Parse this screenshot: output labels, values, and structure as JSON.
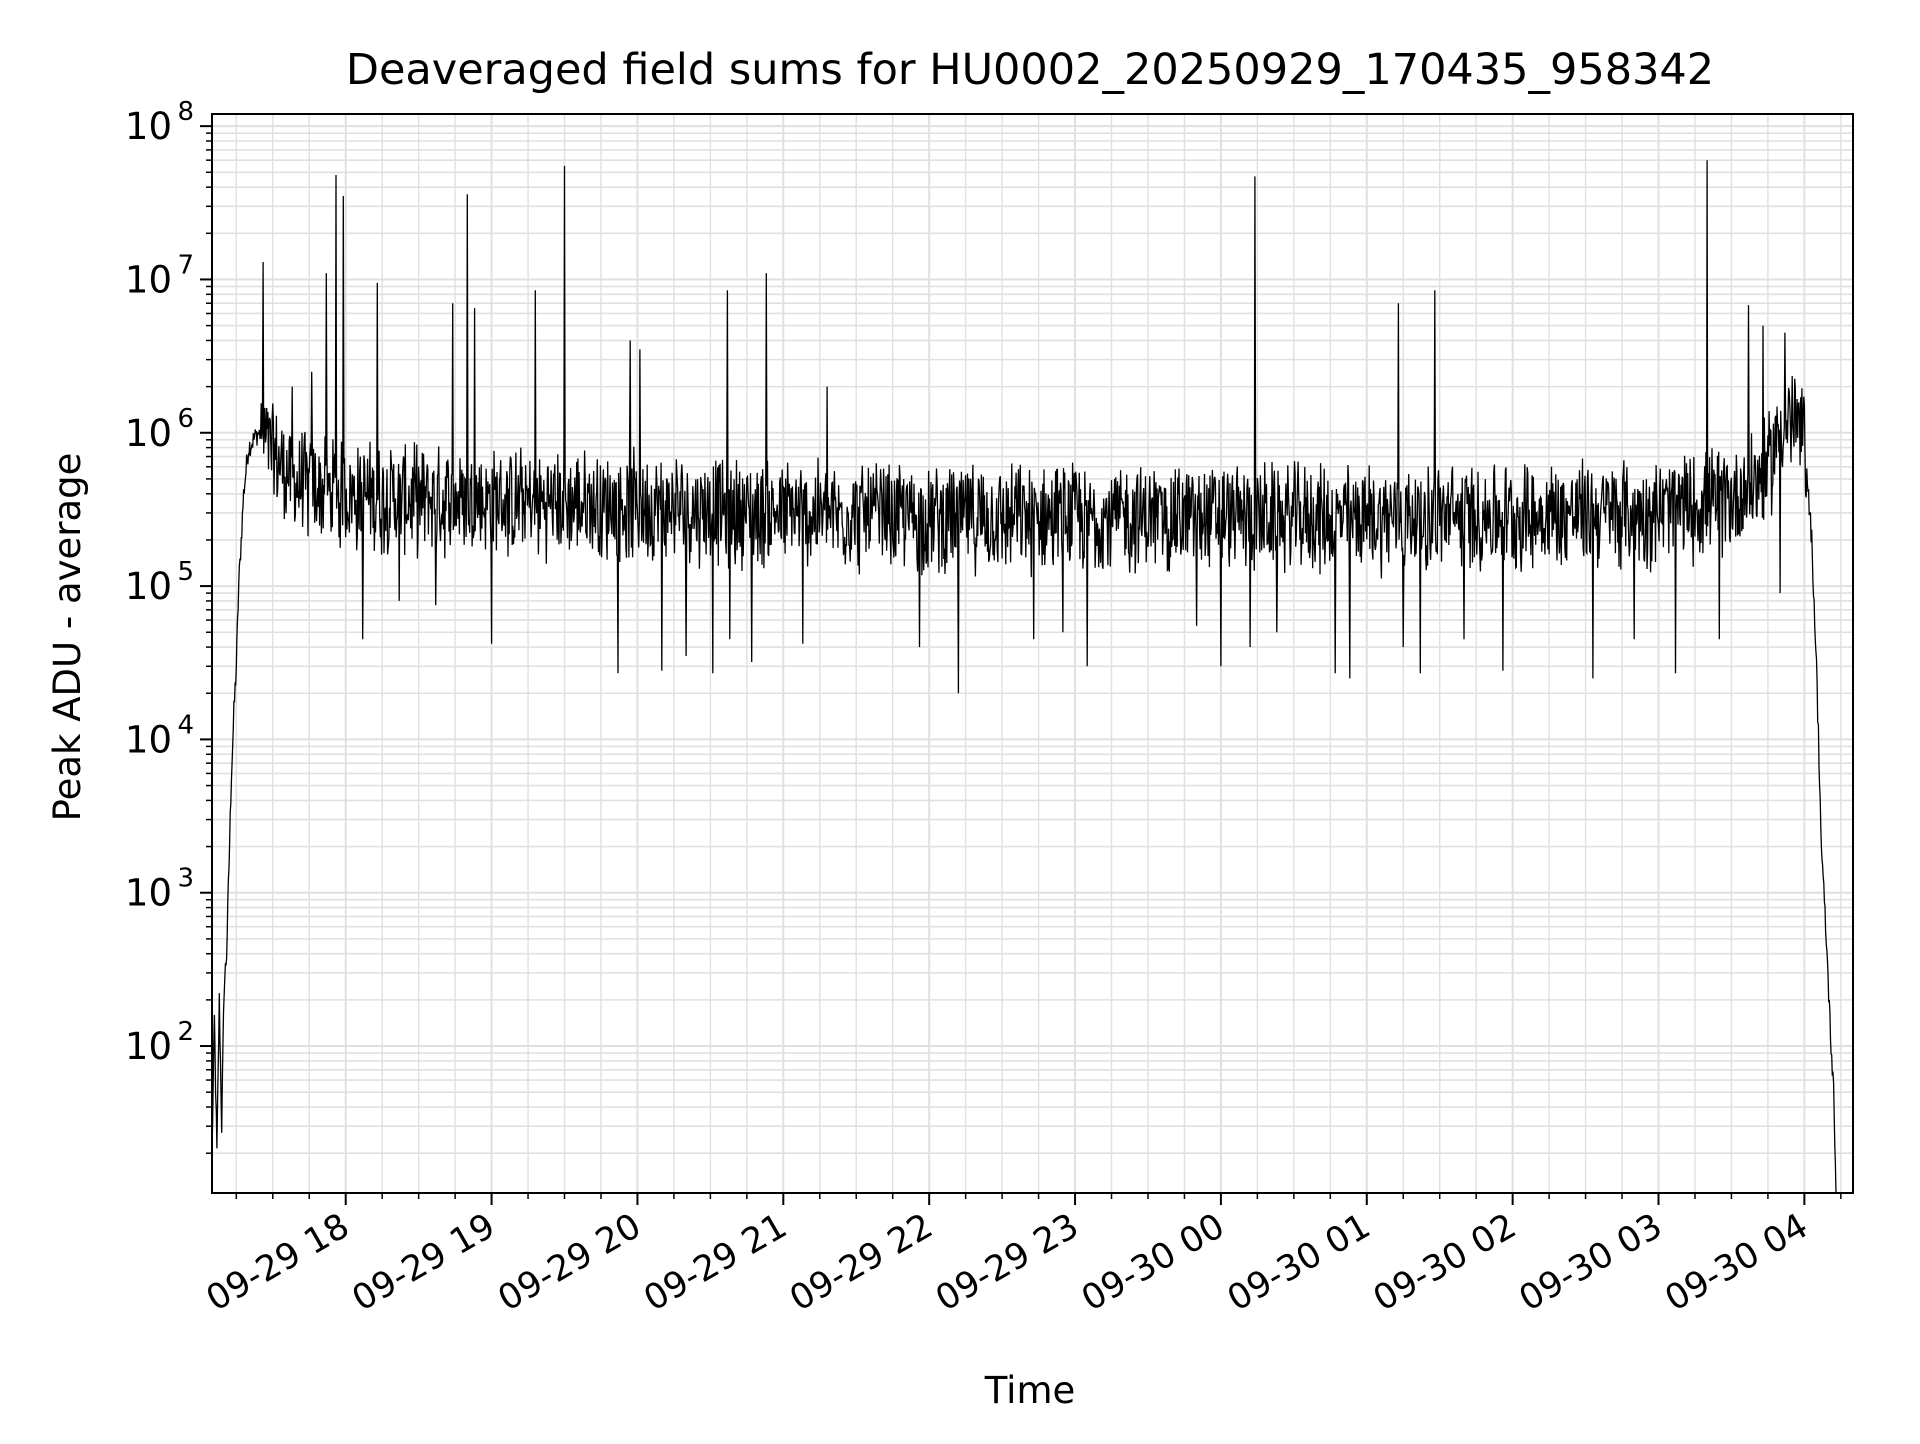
{
  "chart_data": {
    "type": "line",
    "title": "Deaveraged field sums for HU0002_20250929_170435_958342",
    "xlabel": "Time",
    "ylabel": "Peak ADU - average",
    "yscale": "log",
    "ylim": [
      11,
      120000000
    ],
    "xlim": [
      "2025-09-29 17:05",
      "2025-09-30 04:20"
    ],
    "grid": true,
    "line_color": "#000000",
    "grid_color": "#e0e0e0",
    "x_ticks": [
      {
        "t": "2025-09-29 18:00",
        "label": "09-29 18"
      },
      {
        "t": "2025-09-29 19:00",
        "label": "09-29 19"
      },
      {
        "t": "2025-09-29 20:00",
        "label": "09-29 20"
      },
      {
        "t": "2025-09-29 21:00",
        "label": "09-29 21"
      },
      {
        "t": "2025-09-29 22:00",
        "label": "09-29 22"
      },
      {
        "t": "2025-09-29 23:00",
        "label": "09-29 23"
      },
      {
        "t": "2025-09-30 00:00",
        "label": "09-30 00"
      },
      {
        "t": "2025-09-30 01:00",
        "label": "09-30 01"
      },
      {
        "t": "2025-09-30 02:00",
        "label": "09-30 02"
      },
      {
        "t": "2025-09-30 03:00",
        "label": "09-30 03"
      },
      {
        "t": "2025-09-30 04:00",
        "label": "09-30 04"
      }
    ],
    "y_ticks": [
      {
        "v": 100,
        "base": "10",
        "exp": "2"
      },
      {
        "v": 1000,
        "base": "10",
        "exp": "3"
      },
      {
        "v": 10000,
        "base": "10",
        "exp": "4"
      },
      {
        "v": 100000,
        "base": "10",
        "exp": "5"
      },
      {
        "v": 1000000,
        "base": "10",
        "exp": "6"
      },
      {
        "v": 10000000,
        "base": "10",
        "exp": "7"
      },
      {
        "v": 100000000,
        "base": "10",
        "exp": "8"
      }
    ],
    "series": [
      {
        "baseline_points": [
          [
            "2025-09-29 17:05",
            20
          ],
          [
            "2025-09-29 17:06",
            150
          ],
          [
            "2025-09-29 17:07",
            20
          ],
          [
            "2025-09-29 17:08",
            200
          ],
          [
            "2025-09-29 17:09",
            30
          ],
          [
            "2025-09-29 17:10",
            250
          ],
          [
            "2025-09-29 17:11",
            400
          ],
          [
            "2025-09-29 17:12",
            1500
          ],
          [
            "2025-09-29 17:13",
            6000
          ],
          [
            "2025-09-29 17:14",
            15000
          ],
          [
            "2025-09-29 17:15",
            30000
          ],
          [
            "2025-09-29 17:16",
            100000
          ],
          [
            "2025-09-29 17:18",
            400000
          ],
          [
            "2025-09-29 17:20",
            800000
          ],
          [
            "2025-09-29 17:24",
            1000000
          ],
          [
            "2025-09-29 17:28",
            900000
          ],
          [
            "2025-09-29 17:32",
            700000
          ],
          [
            "2025-09-29 17:40",
            500000
          ],
          [
            "2025-09-29 18:00",
            420000
          ],
          [
            "2025-09-29 19:00",
            380000
          ],
          [
            "2025-09-29 20:00",
            360000
          ],
          [
            "2025-09-29 21:00",
            320000
          ],
          [
            "2025-09-29 22:00",
            300000
          ],
          [
            "2025-09-29 23:00",
            300000
          ],
          [
            "2025-09-30 00:00",
            300000
          ],
          [
            "2025-09-30 01:00",
            300000
          ],
          [
            "2025-09-30 02:00",
            310000
          ],
          [
            "2025-09-30 03:00",
            330000
          ],
          [
            "2025-09-30 03:30",
            400000
          ],
          [
            "2025-09-30 03:45",
            600000
          ],
          [
            "2025-09-30 03:50",
            1200000
          ],
          [
            "2025-09-30 03:55",
            1300000
          ],
          [
            "2025-09-30 04:00",
            1000000
          ],
          [
            "2025-09-30 04:03",
            200000
          ],
          [
            "2025-09-30 04:05",
            30000
          ],
          [
            "2025-09-30 04:07",
            2000
          ],
          [
            "2025-09-30 04:09",
            500
          ],
          [
            "2025-09-30 04:11",
            100
          ],
          [
            "2025-09-30 04:12",
            50
          ],
          [
            "2025-09-30 04:13",
            11
          ]
        ],
        "spikes": [
          [
            "2025-09-29 17:26",
            13000000
          ],
          [
            "2025-09-29 17:38",
            2000000
          ],
          [
            "2025-09-29 17:42",
            1000000
          ],
          [
            "2025-09-29 17:46",
            2500000
          ],
          [
            "2025-09-29 17:52",
            11000000
          ],
          [
            "2025-09-29 17:56",
            48000000
          ],
          [
            "2025-09-29 17:59",
            35000000
          ],
          [
            "2025-09-29 18:13",
            9500000
          ],
          [
            "2025-09-29 18:44",
            7000000
          ],
          [
            "2025-09-29 18:50",
            36000000
          ],
          [
            "2025-09-29 18:53",
            6500000
          ],
          [
            "2025-09-29 19:18",
            8500000
          ],
          [
            "2025-09-29 19:30",
            55000000
          ],
          [
            "2025-09-29 19:57",
            4000000
          ],
          [
            "2025-09-29 20:01",
            3500000
          ],
          [
            "2025-09-29 20:37",
            8500000
          ],
          [
            "2025-09-29 20:53",
            11000000
          ],
          [
            "2025-09-29 21:18",
            2000000
          ],
          [
            "2025-09-30 00:14",
            47000000
          ],
          [
            "2025-09-30 01:13",
            7000000
          ],
          [
            "2025-09-30 01:28",
            8500000
          ],
          [
            "2025-09-30 03:20",
            60000000
          ],
          [
            "2025-09-30 03:37",
            6800000
          ],
          [
            "2025-09-30 03:43",
            5000000
          ],
          [
            "2025-09-30 03:52",
            4500000
          ]
        ],
        "dips": [
          [
            "2025-09-29 17:38",
            90000
          ],
          [
            "2025-09-29 18:07",
            45000
          ],
          [
            "2025-09-29 18:22",
            80000
          ],
          [
            "2025-09-29 18:37",
            75000
          ],
          [
            "2025-09-29 19:00",
            42000
          ],
          [
            "2025-09-29 19:30",
            85000
          ],
          [
            "2025-09-29 19:52",
            27000
          ],
          [
            "2025-09-29 20:10",
            28000
          ],
          [
            "2025-09-29 20:20",
            35000
          ],
          [
            "2025-09-29 20:31",
            27000
          ],
          [
            "2025-09-29 20:38",
            45000
          ],
          [
            "2025-09-29 20:47",
            32000
          ],
          [
            "2025-09-29 21:08",
            42000
          ],
          [
            "2025-09-29 21:18",
            60000
          ],
          [
            "2025-09-29 21:56",
            40000
          ],
          [
            "2025-09-29 22:12",
            20000
          ],
          [
            "2025-09-29 22:43",
            45000
          ],
          [
            "2025-09-29 22:55",
            50000
          ],
          [
            "2025-09-29 23:05",
            30000
          ],
          [
            "2025-09-29 23:50",
            55000
          ],
          [
            "2025-09-30 00:00",
            30000
          ],
          [
            "2025-09-30 00:12",
            40000
          ],
          [
            "2025-09-30 00:23",
            50000
          ],
          [
            "2025-09-30 00:47",
            27000
          ],
          [
            "2025-09-30 00:53",
            25000
          ],
          [
            "2025-09-30 01:15",
            40000
          ],
          [
            "2025-09-30 01:22",
            27000
          ],
          [
            "2025-09-30 01:40",
            45000
          ],
          [
            "2025-09-30 01:56",
            28000
          ],
          [
            "2025-09-30 02:33",
            25000
          ],
          [
            "2025-09-30 02:50",
            45000
          ],
          [
            "2025-09-30 03:07",
            27000
          ],
          [
            "2025-09-30 03:25",
            45000
          ],
          [
            "2025-09-30 03:50",
            90000
          ]
        ]
      }
    ]
  }
}
